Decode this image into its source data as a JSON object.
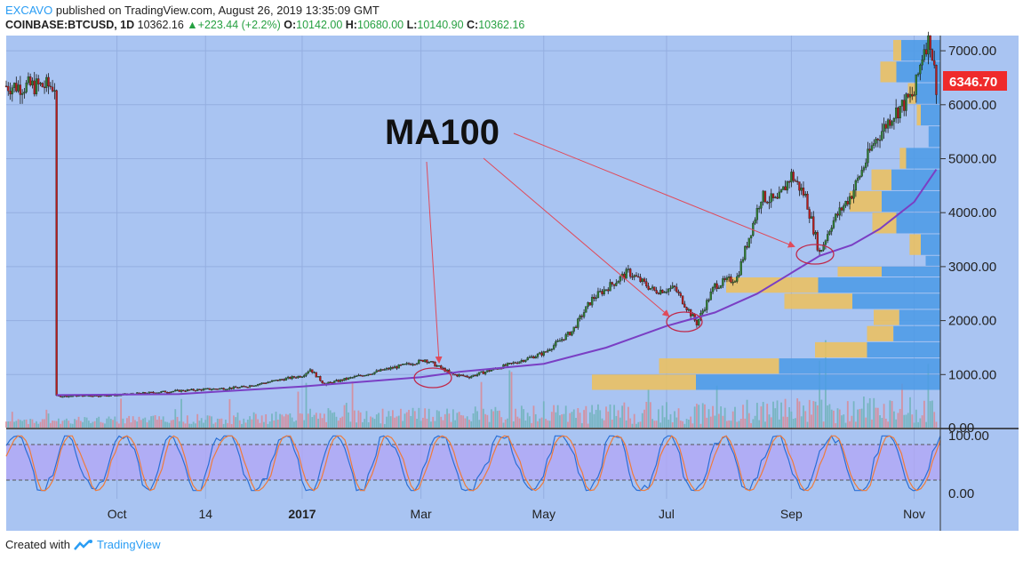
{
  "header": {
    "author": "EXCAVO",
    "published_text": "published on TradingView.com, August 26, 2019 13:35:09 GMT",
    "symbol": "COINBASE:BTCUSD, 1D",
    "last": "10362.16",
    "change": "+223.44 (+2.2%)",
    "open_label": "O:",
    "open": "10142.00",
    "high_label": "H:",
    "high": "10680.00",
    "low_label": "L:",
    "low": "10140.90",
    "close_label": "C:",
    "close": "10362.16"
  },
  "footer": {
    "created_with": "Created with",
    "brand": "TradingView"
  },
  "colors": {
    "background": "#a9c4f2",
    "ma_line": "#7a3fc4",
    "up_candle": "#2e7d32",
    "down_candle": "#b71c1c",
    "price_label": "#ef2b2b",
    "annotation_arrow": "#e04a5a",
    "stoch_band": "#b3a6f5",
    "vp_blue": "#4a9ae6",
    "vp_yellow": "#efc15a"
  },
  "chart_data": {
    "type": "candlestick",
    "annotation": "MA100",
    "price_label": "6346.70",
    "price_ticks": [
      "1000.00",
      "2000.00",
      "3000.00",
      "4000.00",
      "5000.00",
      "6000.00",
      "7000.00"
    ],
    "price_tick_values": [
      1000,
      2000,
      3000,
      4000,
      5000,
      6000,
      7000
    ],
    "price_bottom_tick": "0.00",
    "ylim": [
      0,
      7500
    ],
    "oscillator_ticks": [
      "100.00",
      "0.00"
    ],
    "oscillator_band": [
      20,
      80
    ],
    "x_ticks": [
      "Oct",
      "14",
      "2017",
      "Mar",
      "May",
      "Jul",
      "Sep",
      "Nov"
    ],
    "x_tick_bold": [
      false,
      false,
      true,
      false,
      false,
      false,
      false,
      false
    ],
    "series": [
      {
        "name": "BTCUSD",
        "x": [
          "2016-09-01",
          "2016-10-01",
          "2016-11-01",
          "2016-12-01",
          "2017-01-01",
          "2017-01-05",
          "2017-01-12",
          "2017-02-01",
          "2017-03-01",
          "2017-03-03",
          "2017-03-17",
          "2017-03-25",
          "2017-04-15",
          "2017-05-01",
          "2017-05-15",
          "2017-05-25",
          "2017-06-12",
          "2017-06-25",
          "2017-07-05",
          "2017-07-16",
          "2017-07-25",
          "2017-08-05",
          "2017-08-17",
          "2017-08-25",
          "2017-09-01",
          "2017-09-08",
          "2017-09-15",
          "2017-09-21",
          "2017-10-01",
          "2017-10-12",
          "2017-10-21",
          "2017-11-01",
          "2017-11-06",
          "2017-11-09",
          "2017-11-12"
        ],
        "values": [
          600,
          620,
          700,
          760,
          980,
          1100,
          820,
          1000,
          1250,
          1280,
          1000,
          960,
          1200,
          1400,
          1800,
          2400,
          2900,
          2550,
          2600,
          1950,
          2650,
          2800,
          4300,
          4200,
          4700,
          4300,
          3250,
          3800,
          4350,
          5300,
          5800,
          6200,
          7100,
          7200,
          6346
        ]
      },
      {
        "name": "MA100",
        "x": [
          "2016-09-01",
          "2016-11-01",
          "2017-01-01",
          "2017-03-01",
          "2017-03-20",
          "2017-05-01",
          "2017-06-01",
          "2017-07-01",
          "2017-07-25",
          "2017-08-15",
          "2017-09-15",
          "2017-10-01",
          "2017-10-15",
          "2017-11-01",
          "2017-11-12"
        ],
        "values": [
          620,
          640,
          780,
          950,
          1050,
          1200,
          1500,
          1900,
          2150,
          2500,
          3200,
          3400,
          3700,
          4200,
          4800
        ]
      }
    ]
  }
}
